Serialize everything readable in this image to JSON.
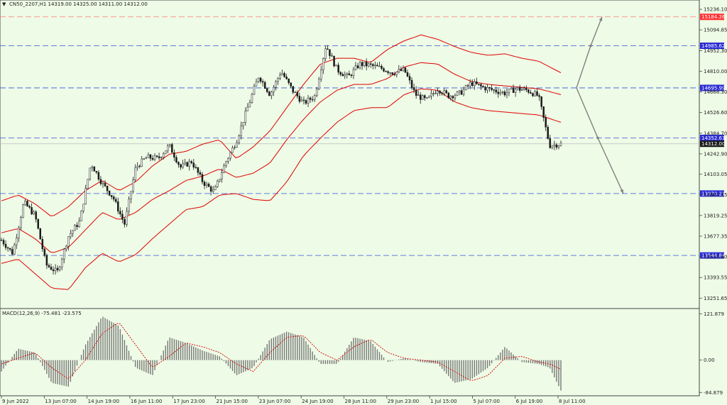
{
  "header": {
    "symbol_info": "CN50_2207,H1  14319.00 14325.00 14311.00 14312.00",
    "macd_info": "MACD(12,26,9) -75.481 -23.575"
  },
  "colors": {
    "background": "#eefbe6",
    "candle": "#1a1a1a",
    "bands": "#e00000",
    "hline": "#3355dd",
    "hline_red": "#ff7777",
    "macd_bar": "#777777",
    "signal": "#cc0000",
    "projection": "#808080"
  },
  "chart_data": [
    {
      "type": "candlestick",
      "title": "CN50_2207,H1",
      "last_ohlc": {
        "open": 14319.0,
        "high": 14325.0,
        "low": 14311.0,
        "close": 14312.0
      },
      "ylim": [
        13180,
        15300
      ],
      "y_ticks": [
        "15236.10",
        "15094.85",
        "14952.30",
        "14810.00",
        "14668.30",
        "14526.60",
        "14384.70",
        "14242.90",
        "14103.05",
        "13961.15",
        "13819.25",
        "13677.35",
        "13535.60",
        "13393.55",
        "13251.65"
      ],
      "x_ticks": [
        "9 Jun 2022",
        "13 Jun 07:00",
        "14 Jun 19:00",
        "16 Jun 11:00",
        "17 Jun 23:00",
        "21 Jun 15:00",
        "23 Jun 07:00",
        "24 Jun 19:00",
        "28 Jun 11:00",
        "29 Jun 23:00",
        "1 Jul 15:00",
        "5 Jul 07:00",
        "6 Jul 19:00",
        "8 Jul 11:00"
      ],
      "price_levels": [
        {
          "label": "15184.26",
          "value": 15184.26,
          "color": "#ff3333",
          "style": "dashed-red"
        },
        {
          "label": "14985.62",
          "value": 14985.62,
          "color": "#2b2bd6",
          "style": "dashed-blue"
        },
        {
          "label": "14695.99",
          "value": 14695.99,
          "color": "#2b2bd6",
          "style": "dashed-blue"
        },
        {
          "label": "14352.61",
          "value": 14352.61,
          "color": "#2b2bd6",
          "style": "dashed-blue"
        },
        {
          "label": "14312.00",
          "value": 14312.0,
          "color": "#1a1a1a",
          "style": "current-price"
        },
        {
          "label": "13970.21",
          "value": 13970.21,
          "color": "#2b2bd6",
          "style": "dashed-blue"
        },
        {
          "label": "13544.84",
          "value": 13544.84,
          "color": "#2b2bd6",
          "style": "dashed-blue"
        }
      ],
      "bollinger_anchor_x": [
        0,
        0.03,
        0.06,
        0.09,
        0.12,
        0.15,
        0.18,
        0.21,
        0.24,
        0.27,
        0.3,
        0.33,
        0.36,
        0.39,
        0.42,
        0.45,
        0.48,
        0.51,
        0.54,
        0.57,
        0.6,
        0.63,
        0.66,
        0.69,
        0.72,
        0.75,
        0.78,
        0.81,
        0.84,
        0.87,
        0.9,
        0.93,
        0.96,
        1.0
      ],
      "bollinger_upper": [
        13920,
        13960,
        13900,
        13810,
        13880,
        13990,
        14060,
        13990,
        14050,
        14160,
        14240,
        14260,
        14310,
        14340,
        14210,
        14290,
        14400,
        14560,
        14720,
        14860,
        14900,
        14900,
        14870,
        14960,
        15020,
        15060,
        15030,
        14980,
        14940,
        14920,
        14930,
        14900,
        14880,
        14800
      ],
      "bollinger_middle": [
        13700,
        13730,
        13660,
        13560,
        13600,
        13720,
        13840,
        13790,
        13840,
        13930,
        13990,
        14060,
        14090,
        14140,
        14080,
        14110,
        14180,
        14340,
        14480,
        14600,
        14680,
        14720,
        14720,
        14760,
        14840,
        14870,
        14860,
        14790,
        14740,
        14720,
        14710,
        14700,
        14690,
        14650
      ],
      "bollinger_lower": [
        13490,
        13520,
        13420,
        13320,
        13310,
        13460,
        13560,
        13500,
        13550,
        13660,
        13760,
        13860,
        13880,
        13960,
        13970,
        13930,
        13920,
        14050,
        14230,
        14350,
        14460,
        14540,
        14560,
        14560,
        14650,
        14690,
        14680,
        14600,
        14560,
        14540,
        14530,
        14520,
        14510,
        14460
      ],
      "close_anchor_x": [
        0,
        0.02,
        0.04,
        0.06,
        0.08,
        0.1,
        0.12,
        0.14,
        0.16,
        0.18,
        0.2,
        0.22,
        0.24,
        0.26,
        0.28,
        0.3,
        0.32,
        0.34,
        0.36,
        0.38,
        0.4,
        0.42,
        0.44,
        0.46,
        0.48,
        0.5,
        0.52,
        0.54,
        0.56,
        0.58,
        0.6,
        0.62,
        0.64,
        0.66,
        0.68,
        0.7,
        0.72,
        0.74,
        0.76,
        0.78,
        0.8,
        0.82,
        0.84,
        0.86,
        0.88,
        0.9,
        0.92,
        0.94,
        0.96,
        0.98,
        1.0
      ],
      "close_path": [
        13650,
        13560,
        13910,
        13820,
        13480,
        13430,
        13680,
        13780,
        14180,
        14040,
        13940,
        13760,
        14150,
        14220,
        14210,
        14300,
        14150,
        14190,
        14050,
        13980,
        14180,
        14330,
        14560,
        14780,
        14650,
        14810,
        14680,
        14590,
        14640,
        14990,
        14820,
        14770,
        14860,
        14850,
        14830,
        14800,
        14820,
        14650,
        14610,
        14690,
        14640,
        14660,
        14730,
        14700,
        14680,
        14660,
        14690,
        14680,
        14640,
        14300,
        14312
      ]
    },
    {
      "type": "bar",
      "title": "MACD(12,26,9)",
      "values_text": "-75.481 -23.575",
      "ylim": [
        -90,
        130
      ],
      "y_ticks": [
        "121.879",
        "0.00",
        "-84.879"
      ],
      "macd_anchor_x": [
        0,
        0.03,
        0.06,
        0.09,
        0.12,
        0.15,
        0.18,
        0.21,
        0.24,
        0.27,
        0.3,
        0.33,
        0.36,
        0.39,
        0.42,
        0.45,
        0.48,
        0.51,
        0.54,
        0.57,
        0.6,
        0.63,
        0.66,
        0.69,
        0.72,
        0.75,
        0.78,
        0.81,
        0.84,
        0.87,
        0.9,
        0.93,
        0.96,
        0.98,
        1.0
      ],
      "macd_hist": [
        -30,
        30,
        20,
        -60,
        -70,
        40,
        115,
        90,
        -20,
        -40,
        60,
        45,
        25,
        10,
        -40,
        -20,
        55,
        75,
        60,
        -10,
        -10,
        60,
        50,
        -5,
        5,
        -5,
        -10,
        -60,
        -50,
        -20,
        35,
        -5,
        -10,
        -20,
        -80
      ],
      "signal_line": [
        -10,
        5,
        20,
        -20,
        -50,
        0,
        70,
        100,
        40,
        -20,
        10,
        45,
        35,
        20,
        -10,
        -30,
        20,
        60,
        65,
        20,
        0,
        35,
        55,
        20,
        5,
        0,
        -5,
        -30,
        -55,
        -40,
        5,
        10,
        -5,
        -10,
        -24
      ]
    }
  ]
}
